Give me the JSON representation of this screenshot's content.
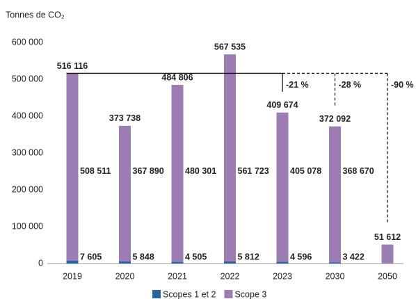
{
  "chart_data": {
    "type": "stacked_bar",
    "y_axis_label": "Tonnes de CO₂",
    "categories": [
      "2019",
      "2020",
      "2021",
      "2022",
      "2023",
      "2030",
      "2050"
    ],
    "series": [
      {
        "name": "Scopes 1 et 2",
        "color": "#2a64a8",
        "values": [
          7605,
          5848,
          4505,
          5812,
          4596,
          3422,
          null
        ],
        "value_labels": [
          "7 605",
          "5 848",
          "4 505",
          "5 812",
          "4 596",
          "3 422",
          null
        ]
      },
      {
        "name": "Scope 3",
        "color": "#9b7db4",
        "values": [
          508511,
          367890,
          480301,
          561723,
          405078,
          368670,
          51612
        ],
        "value_labels": [
          "508 511",
          "367 890",
          "480 301",
          "561 723",
          "405 078",
          "368 670",
          null
        ]
      }
    ],
    "totals": {
      "values": [
        516116,
        373738,
        484806,
        567535,
        409674,
        372092,
        51612
      ],
      "value_labels": [
        "516 116",
        "373 738",
        "484 806",
        "567 535",
        "409 674",
        "372 092",
        "51 612"
      ]
    },
    "annotations": [
      "-21 %",
      "-28 %",
      "-90 %"
    ],
    "ylim": [
      0,
      600000
    ],
    "yticks": [
      0,
      {
        "value": 100000,
        "label": "100 000"
      },
      {
        "value": 200000,
        "label": "200 000"
      },
      {
        "value": 300000,
        "label": "300 000"
      },
      {
        "value": 400000,
        "label": "400 000"
      },
      {
        "value": 500000,
        "label": "500 000"
      },
      {
        "value": 600000,
        "label": "600 000"
      }
    ],
    "legend": "bottom"
  }
}
